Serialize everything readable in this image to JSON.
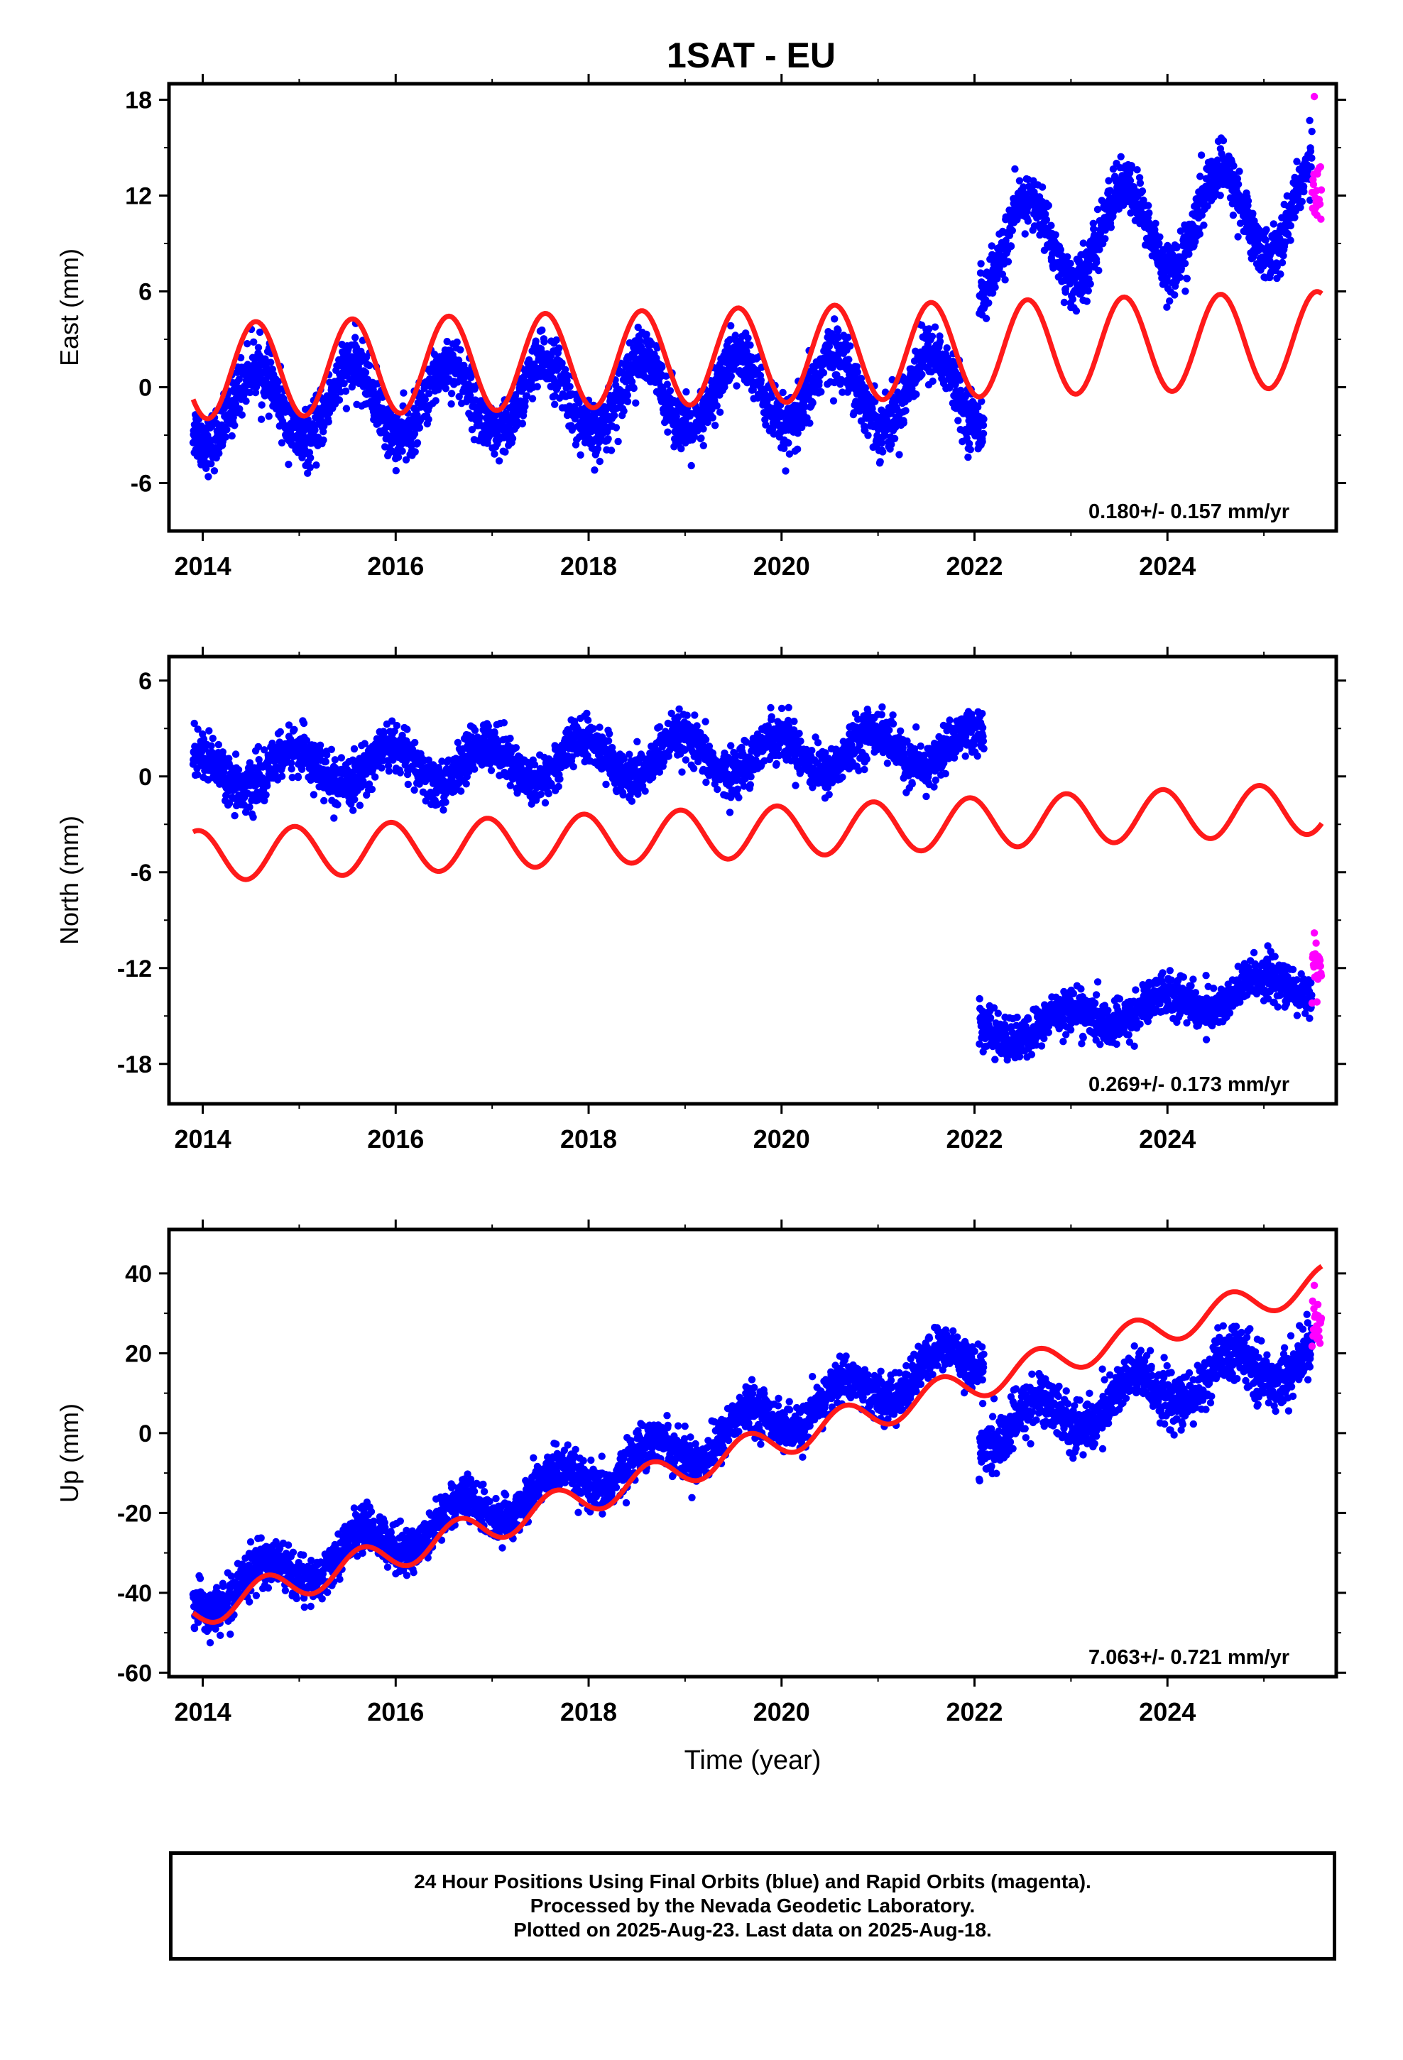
{
  "title": "1SAT - EU",
  "colors": {
    "final": "#0000ff",
    "rapid": "#ff00ff",
    "model": "#ff1a1a",
    "axis": "#000000"
  },
  "chart_data": [
    {
      "type": "scatter",
      "name": "east",
      "ylabel": "East (mm)",
      "xlim": [
        2013.65,
        2025.75
      ],
      "ylim": [
        -9,
        19
      ],
      "yticks": [
        -6,
        0,
        6,
        12,
        18
      ],
      "xticks": [
        2014,
        2016,
        2018,
        2020,
        2022,
        2024
      ],
      "rate": "0.180+/- 0.157 mm/yr",
      "segments": [
        {
          "start": 2013.9,
          "end": 2022.1,
          "trend": [
            -1.2,
            0.0
          ],
          "amp": 2.3,
          "phase": 0.3,
          "noise": 1.6
        },
        {
          "start": 2022.05,
          "end": 2025.5,
          "trend": [
            8.5,
            11.5
          ],
          "amp": 2.8,
          "phase": 0.3,
          "noise": 1.5
        }
      ],
      "rapid": {
        "start": 2025.5,
        "end": 2025.6,
        "mean": 12.5,
        "spread": 2.2,
        "max": 18.2
      },
      "model": {
        "start": 2013.9,
        "end": 2025.6,
        "trend": [
          1.0,
          3.0
        ],
        "amp": 3.0,
        "phase": 0.3
      }
    },
    {
      "type": "scatter",
      "name": "north",
      "ylabel": "North (mm)",
      "xlim": [
        2013.65,
        2025.75
      ],
      "ylim": [
        -20.5,
        7.5
      ],
      "yticks": [
        -18,
        -12,
        -6,
        0,
        6
      ],
      "xticks": [
        2014,
        2016,
        2018,
        2020,
        2022,
        2024
      ],
      "rate": "0.269+/- 0.173 mm/yr",
      "segments": [
        {
          "start": 2013.9,
          "end": 2022.1,
          "trend": [
            0.3,
            1.8
          ],
          "amp": 1.2,
          "phase": 0.7,
          "noise": 1.3
        },
        {
          "start": 2022.05,
          "end": 2025.5,
          "trend": [
            -16.2,
            -12.8
          ],
          "amp": 0.8,
          "phase": 0.7,
          "noise": 1.2
        }
      ],
      "rapid": {
        "start": 2025.5,
        "end": 2025.6,
        "mean": -12.0,
        "spread": 1.5,
        "max": -9.8
      },
      "model": {
        "start": 2013.9,
        "end": 2025.6,
        "trend": [
          -5.0,
          -2.0
        ],
        "amp": 1.6,
        "phase": 0.7
      }
    },
    {
      "type": "scatter",
      "name": "up",
      "ylabel": "Up (mm)",
      "xlabel": "Time (year)",
      "xlim": [
        2013.65,
        2025.75
      ],
      "ylim": [
        -61,
        51
      ],
      "yticks": [
        -60,
        -40,
        -20,
        0,
        20,
        40
      ],
      "xticks": [
        2014,
        2016,
        2018,
        2020,
        2022,
        2024
      ],
      "rate": "7.063+/- 0.721 mm/yr",
      "segments": [
        {
          "start": 2013.9,
          "end": 2022.1,
          "trend": [
            -42,
            20
          ],
          "amp": 4.5,
          "phase": 0.4,
          "noise": 5.0
        },
        {
          "start": 2022.05,
          "end": 2025.5,
          "trend": [
            0,
            20
          ],
          "amp": 5.0,
          "phase": 0.4,
          "noise": 6.0
        }
      ],
      "rapid": {
        "start": 2025.5,
        "end": 2025.6,
        "mean": 28,
        "spread": 5,
        "max": 37
      },
      "model": {
        "start": 2013.9,
        "end": 2025.6,
        "trend": [
          -45,
          38
        ],
        "amp": 4.0,
        "phase": 0.4
      }
    }
  ],
  "footer": {
    "line1": "24 Hour Positions Using Final Orbits (blue) and Rapid Orbits (magenta).",
    "line2": "Processed by the Nevada Geodetic Laboratory.",
    "line3": "Plotted on 2025-Aug-23. Last data on 2025-Aug-18."
  }
}
